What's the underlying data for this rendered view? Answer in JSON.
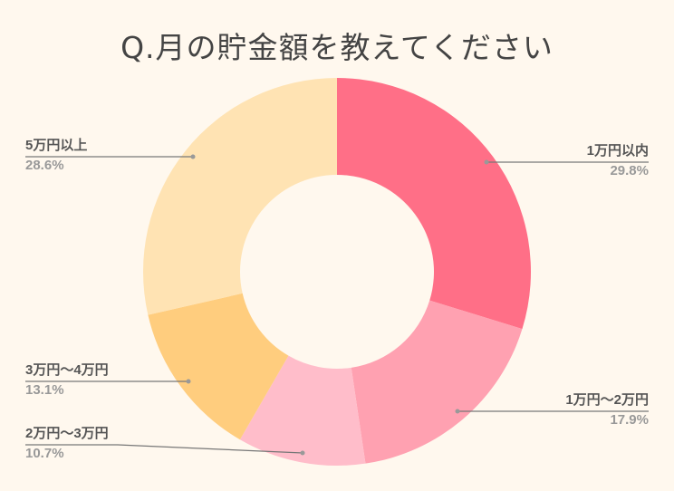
{
  "title": "Q.月の貯金額を教えてください",
  "colors": {
    "background": "#FFF8EE",
    "title_text": "#444444",
    "label_text": "#555555",
    "percent_text": "#999999",
    "leader_line": "#777777"
  },
  "chart_data": {
    "type": "pie",
    "subtype": "donut",
    "title": "Q.月の貯金額を教えてください",
    "start_angle_deg": 0,
    "direction": "clockwise",
    "inner_radius_ratio": 0.5,
    "legend_position": "none (callout labels)",
    "categories": [
      "1万円以内",
      "1万円～2万円",
      "2万円～3万円",
      "3万円～4万円",
      "5万円以上"
    ],
    "values": [
      29.8,
      17.9,
      10.7,
      13.1,
      28.6
    ],
    "unit": "%",
    "slice_colors": [
      "#FF6F87",
      "#FFA1B1",
      "#FFBDCA",
      "#FFCD7E",
      "#FFE3B3"
    ]
  },
  "labels": [
    {
      "name": "1万円以内",
      "percent": "29.8%"
    },
    {
      "name": "1万円～2万円",
      "percent": "17.9%"
    },
    {
      "name": "2万円～3万円",
      "percent": "10.7%"
    },
    {
      "name": "3万円～4万円",
      "percent": "13.1%"
    },
    {
      "name": "5万円以上",
      "percent": "28.6%"
    }
  ]
}
